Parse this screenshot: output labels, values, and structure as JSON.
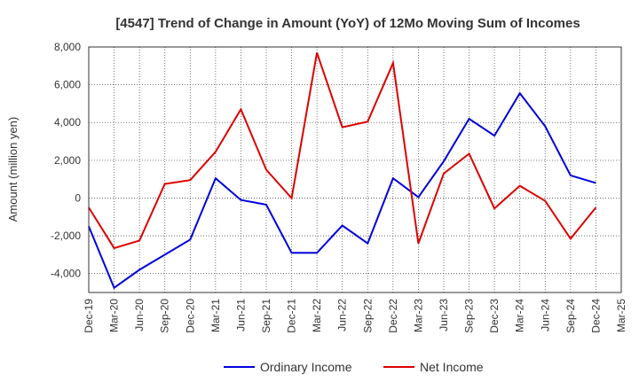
{
  "chart_data": {
    "type": "line",
    "title": "[4547]  Trend of Change in Amount (YoY) of 12Mo Moving Sum of Incomes",
    "xlabel": "",
    "ylabel": "Amount (million yen)",
    "ylim": [
      -5000,
      8000
    ],
    "yticks": [
      -4000,
      -2000,
      0,
      2000,
      4000,
      6000,
      8000
    ],
    "ytick_labels": [
      "-4,000",
      "-2,000",
      "0",
      "2,000",
      "4,000",
      "6,000",
      "8,000"
    ],
    "grid": true,
    "legend_position": "bottom",
    "categories": [
      "Dec-19",
      "Mar-20",
      "Jun-20",
      "Sep-20",
      "Dec-20",
      "Mar-21",
      "Jun-21",
      "Sep-21",
      "Dec-21",
      "Mar-22",
      "Jun-22",
      "Sep-22",
      "Dec-22",
      "Mar-23",
      "Jun-23",
      "Sep-23",
      "Dec-23",
      "Mar-24",
      "Jun-24",
      "Sep-24",
      "Dec-24",
      "Mar-25"
    ],
    "series": [
      {
        "name": "Ordinary Income",
        "color": "#0000dd",
        "values": [
          -1500,
          -4750,
          -3800,
          -3000,
          -2200,
          1050,
          -100,
          -350,
          -2900,
          -2900,
          -1450,
          -2400,
          1050,
          50,
          1950,
          4200,
          3300,
          5550,
          3800,
          1200,
          800,
          null
        ]
      },
      {
        "name": "Net Income",
        "color": "#dd0000",
        "values": [
          -500,
          -2650,
          -2250,
          750,
          950,
          2450,
          4700,
          1500,
          0,
          7700,
          3750,
          4050,
          7150,
          -2400,
          1300,
          2350,
          -550,
          650,
          -150,
          -2150,
          -500,
          null
        ]
      }
    ]
  }
}
